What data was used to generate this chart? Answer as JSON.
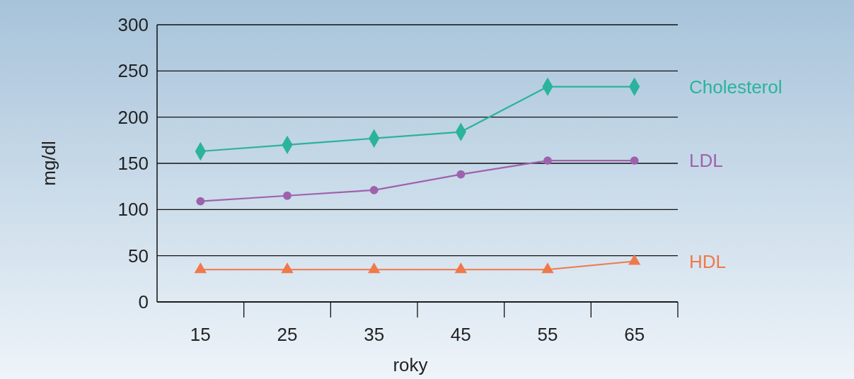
{
  "chart_data": {
    "type": "line",
    "xlabel": "roky",
    "ylabel": "mg/dl",
    "categories": [
      "15",
      "25",
      "35",
      "45",
      "55",
      "65"
    ],
    "series": [
      {
        "name": "Cholesterol",
        "color": "#2bb39c",
        "marker": "diamond",
        "values": [
          163,
          170,
          177,
          184,
          233,
          233
        ]
      },
      {
        "name": "LDL",
        "color": "#9d62ad",
        "marker": "circle",
        "values": [
          109,
          115,
          121,
          138,
          153,
          153
        ]
      },
      {
        "name": "HDL",
        "color": "#f0784a",
        "marker": "triangle",
        "values": [
          35,
          35,
          35,
          35,
          35,
          44
        ]
      }
    ],
    "ylim": [
      0,
      300
    ],
    "yticks": [
      0,
      50,
      100,
      150,
      200,
      250,
      300
    ],
    "grid": "y",
    "line_style": "solid"
  }
}
